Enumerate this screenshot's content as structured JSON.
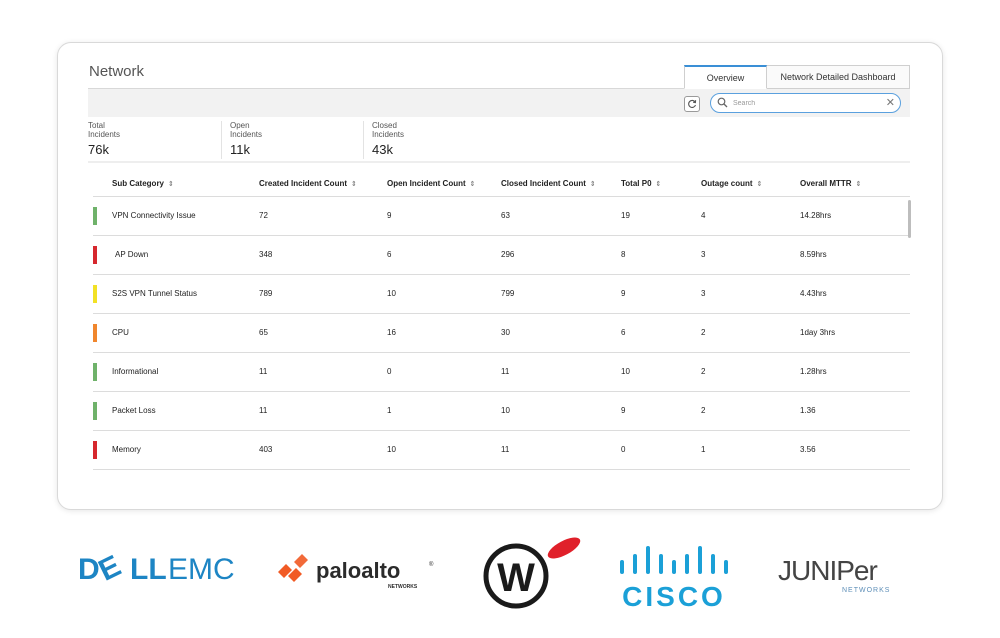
{
  "panel": {
    "title": "Network",
    "tabs": [
      "Overview",
      "Network Detailed Dashboard"
    ],
    "search_placeholder": "Search",
    "refresh_icon": "refresh-icon",
    "clear_icon": "close-icon"
  },
  "stats": [
    {
      "label": "Total Incidents",
      "value": "76k"
    },
    {
      "label": "Open Incidents",
      "value": "11k"
    },
    {
      "label": "Closed Incidents",
      "value": "43k"
    }
  ],
  "table": {
    "headers": [
      "Sub Category",
      "Created Incident Count",
      "Open Incident Count",
      "Closed Incident Count",
      "Total P0",
      "Outage count",
      "Overall MTTR"
    ],
    "sort_glyph": "⇕",
    "rows": [
      {
        "status_color": "#6fb26a",
        "cells": [
          "VPN Connectivity Issue",
          "72",
          "9",
          "63",
          "19",
          "4",
          "14.28hrs"
        ]
      },
      {
        "status_color": "#d6272e",
        "cells": [
          "AP Down",
          "348",
          "6",
          "296",
          "8",
          "3",
          "8.59hrs"
        ]
      },
      {
        "status_color": "#f2e125",
        "cells": [
          "S2S VPN Tunnel Status",
          "789",
          "10",
          "799",
          "9",
          "3",
          "4.43hrs"
        ]
      },
      {
        "status_color": "#f0862d",
        "cells": [
          "CPU",
          "65",
          "16",
          "30",
          "6",
          "2",
          "1day 3hrs"
        ]
      },
      {
        "status_color": "#6fb26a",
        "cells": [
          "Informational",
          "11",
          "0",
          "11",
          "10",
          "2",
          "1.28hrs"
        ]
      },
      {
        "status_color": "#6fb26a",
        "cells": [
          "Packet Loss",
          "11",
          "1",
          "10",
          "9",
          "2",
          "1.36"
        ]
      },
      {
        "status_color": "#d6272e",
        "cells": [
          "Memory",
          "403",
          "10",
          "11",
          "0",
          "1",
          "3.56"
        ]
      }
    ]
  },
  "logos": {
    "dell": {
      "part1": "D",
      "part2": "LL",
      "part3": "EMC",
      "color": "#1d85c4",
      "icon": "dell-emc-logo"
    },
    "paloalto": {
      "text": "paloalto",
      "sub": "NETWORKS",
      "reg": "®",
      "color": "#2b2b2b",
      "accent": "#f15a24",
      "icon": "paloalto-logo"
    },
    "watchguard": {
      "letter": "W",
      "color": "#1a1a1a",
      "accent": "#e0202a",
      "icon": "watchguard-logo"
    },
    "cisco": {
      "text": "CISCO",
      "color": "#1ba0d7",
      "icon": "cisco-logo"
    },
    "juniper": {
      "text": "JUNIPer",
      "sub": "NETWORKS",
      "color": "#444444",
      "accent": "#5e8fb8",
      "icon": "juniper-logo"
    }
  }
}
